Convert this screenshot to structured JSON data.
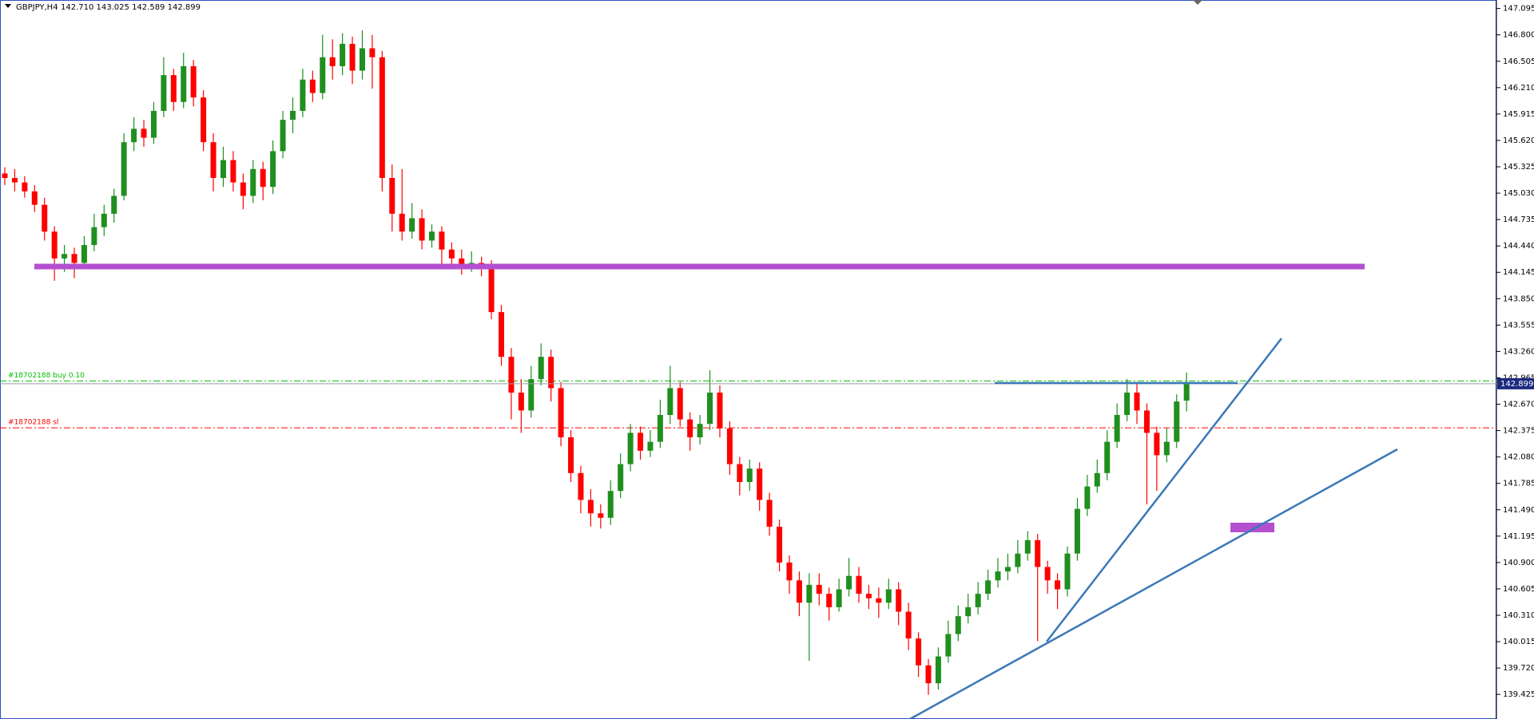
{
  "chart_data": {
    "type": "candlestick",
    "title": "GBPJPY,H4",
    "quote": "142.710 143.025 142.589 142.899",
    "up_color": "#1f8f1f",
    "down_color": "#ff0000",
    "ylim": [
      139.15,
      147.19
    ],
    "yticks": [
      147.095,
      {
        "value": 146.8,
        "label": "146.800"
      },
      146.505,
      {
        "value": 146.21,
        "label": "146.210"
      },
      145.915,
      {
        "value": 145.62,
        "label": "145.620"
      },
      145.325,
      {
        "value": 145.03,
        "label": "145.030"
      },
      144.735,
      {
        "value": 144.44,
        "label": "144.440"
      },
      144.145,
      {
        "value": 143.85,
        "label": "143.850"
      },
      143.555,
      {
        "value": 143.26,
        "label": "143.260"
      },
      142.965,
      {
        "value": 142.67,
        "label": "142.670"
      },
      142.375,
      {
        "value": 142.08,
        "label": "142.080"
      },
      141.785,
      {
        "value": 141.49,
        "label": "141.490"
      },
      141.195,
      {
        "value": 140.9,
        "label": "140.900"
      },
      140.605,
      {
        "value": 140.31,
        "label": "140.310"
      },
      140.015,
      {
        "value": 139.72,
        "label": "139.720"
      },
      139.425
    ],
    "levels": [
      {
        "label": "#18702188 buy 0.10",
        "value": 142.93,
        "color": "#00c000"
      },
      {
        "label": "#18702188 sl",
        "value": 142.406,
        "color": "#ff0000"
      }
    ],
    "open": [
      145.25,
      145.2,
      145.15,
      145.05,
      144.9,
      144.6,
      144.3,
      144.35,
      144.25,
      144.45,
      144.65,
      144.8,
      145.0,
      145.6,
      145.75,
      145.65,
      145.95,
      146.35,
      146.05,
      146.45,
      146.1,
      145.6,
      145.2,
      145.4,
      145.15,
      145.0,
      145.3,
      145.1,
      145.5,
      145.85,
      145.95,
      146.3,
      146.15,
      146.55,
      146.45,
      146.7,
      146.4,
      146.65,
      146.55,
      145.2,
      144.8,
      144.6,
      144.75,
      144.5,
      144.6,
      144.4,
      144.3,
      144.2,
      144.25,
      144.2,
      143.7,
      143.2,
      142.8,
      142.6,
      142.95,
      143.2,
      142.85,
      142.3,
      141.9,
      141.6,
      141.45,
      141.4,
      141.7,
      142.0,
      142.35,
      142.15,
      142.25,
      142.55,
      142.85,
      142.5,
      142.3,
      142.45,
      142.8,
      142.4,
      142.0,
      141.8,
      141.95,
      141.6,
      141.3,
      140.9,
      140.7,
      140.45,
      140.65,
      140.55,
      140.4,
      140.6,
      140.75,
      140.55,
      140.5,
      140.45,
      140.6,
      140.35,
      140.05,
      139.75,
      139.55,
      139.85,
      140.1,
      140.3,
      140.4,
      140.55,
      140.7,
      140.8,
      140.85,
      141.0,
      141.15,
      140.85,
      140.7,
      140.6,
      141.0,
      141.5,
      141.75,
      141.9,
      142.25,
      142.55,
      142.8,
      142.6,
      142.35,
      142.1,
      142.25,
      142.71
    ],
    "high": [
      145.32,
      145.3,
      145.22,
      145.12,
      144.98,
      144.66,
      144.45,
      144.42,
      144.55,
      144.8,
      144.9,
      145.08,
      145.7,
      145.88,
      145.85,
      146.05,
      146.55,
      146.42,
      146.6,
      146.52,
      146.18,
      145.7,
      145.55,
      145.5,
      145.25,
      145.4,
      145.38,
      145.62,
      145.95,
      146.1,
      146.42,
      146.4,
      146.8,
      146.75,
      146.82,
      146.78,
      146.85,
      146.8,
      146.62,
      145.35,
      145.3,
      144.92,
      144.85,
      144.68,
      144.66,
      144.48,
      144.4,
      144.38,
      144.32,
      144.28,
      143.78,
      143.3,
      142.95,
      143.1,
      143.35,
      143.28,
      142.92,
      142.38,
      141.98,
      141.72,
      141.55,
      141.82,
      142.12,
      142.45,
      142.42,
      142.38,
      142.72,
      143.1,
      142.92,
      142.58,
      142.55,
      143.05,
      142.88,
      142.48,
      142.08,
      142.05,
      142.02,
      141.68,
      141.38,
      140.98,
      140.8,
      140.78,
      140.78,
      140.62,
      140.72,
      140.95,
      140.85,
      140.65,
      140.62,
      140.72,
      140.68,
      140.45,
      140.12,
      139.82,
      139.95,
      140.25,
      140.42,
      140.55,
      140.68,
      140.82,
      140.95,
      141.0,
      141.15,
      141.25,
      141.22,
      140.92,
      140.78,
      141.08,
      141.62,
      141.88,
      142.05,
      142.38,
      142.68,
      142.95,
      142.92,
      142.68,
      142.42,
      142.4,
      142.78,
      143.025
    ],
    "low": [
      145.12,
      145.05,
      144.98,
      144.82,
      144.5,
      144.05,
      144.15,
      144.08,
      144.18,
      144.38,
      144.55,
      144.7,
      144.95,
      145.5,
      145.55,
      145.58,
      145.88,
      145.95,
      145.98,
      146.0,
      145.5,
      145.05,
      145.1,
      145.05,
      144.85,
      144.92,
      144.95,
      145.02,
      145.42,
      145.7,
      145.88,
      146.05,
      146.08,
      146.3,
      146.35,
      146.25,
      146.3,
      146.2,
      145.05,
      144.6,
      144.5,
      144.52,
      144.4,
      144.42,
      144.22,
      144.2,
      144.12,
      144.15,
      144.1,
      143.62,
      143.1,
      142.5,
      142.35,
      142.52,
      142.88,
      142.7,
      142.2,
      141.8,
      141.45,
      141.3,
      141.28,
      141.32,
      141.62,
      141.92,
      142.05,
      142.08,
      142.18,
      142.45,
      142.42,
      142.15,
      142.22,
      142.38,
      142.3,
      141.88,
      141.65,
      141.7,
      141.48,
      141.2,
      140.8,
      140.55,
      140.3,
      139.8,
      140.42,
      140.25,
      140.35,
      140.52,
      140.45,
      140.38,
      140.28,
      140.38,
      140.2,
      139.92,
      139.62,
      139.42,
      139.48,
      139.78,
      140.02,
      140.22,
      140.32,
      140.48,
      140.62,
      140.7,
      140.78,
      140.92,
      140.02,
      140.55,
      140.38,
      140.52,
      140.92,
      141.42,
      141.68,
      141.82,
      142.18,
      142.48,
      142.45,
      141.55,
      141.7,
      142.02,
      142.18,
      142.589
    ],
    "close": [
      145.2,
      145.15,
      145.05,
      144.9,
      144.6,
      144.3,
      144.35,
      144.25,
      144.45,
      144.65,
      144.8,
      145.0,
      145.6,
      145.75,
      145.65,
      145.95,
      146.35,
      146.05,
      146.45,
      146.1,
      145.6,
      145.2,
      145.4,
      145.15,
      145.0,
      145.3,
      145.1,
      145.5,
      145.85,
      145.95,
      146.3,
      146.15,
      146.55,
      146.45,
      146.7,
      146.4,
      146.65,
      146.55,
      145.2,
      144.8,
      144.6,
      144.75,
      144.5,
      144.6,
      144.4,
      144.3,
      144.2,
      144.25,
      144.2,
      143.7,
      143.2,
      142.8,
      142.6,
      142.95,
      143.2,
      142.85,
      142.3,
      141.9,
      141.6,
      141.45,
      141.4,
      141.7,
      142.0,
      142.35,
      142.15,
      142.25,
      142.55,
      142.85,
      142.5,
      142.3,
      142.45,
      142.8,
      142.4,
      142.0,
      141.8,
      141.95,
      141.6,
      141.3,
      140.9,
      140.7,
      140.45,
      140.65,
      140.55,
      140.4,
      140.6,
      140.75,
      140.55,
      140.5,
      140.45,
      140.6,
      140.35,
      140.05,
      139.75,
      139.55,
      139.85,
      140.1,
      140.3,
      140.4,
      140.55,
      140.7,
      140.8,
      140.85,
      141.0,
      141.15,
      140.85,
      140.7,
      140.6,
      141.0,
      141.5,
      141.75,
      141.9,
      142.25,
      142.55,
      142.8,
      142.6,
      142.35,
      142.1,
      142.25,
      142.7,
      142.899
    ]
  }
}
